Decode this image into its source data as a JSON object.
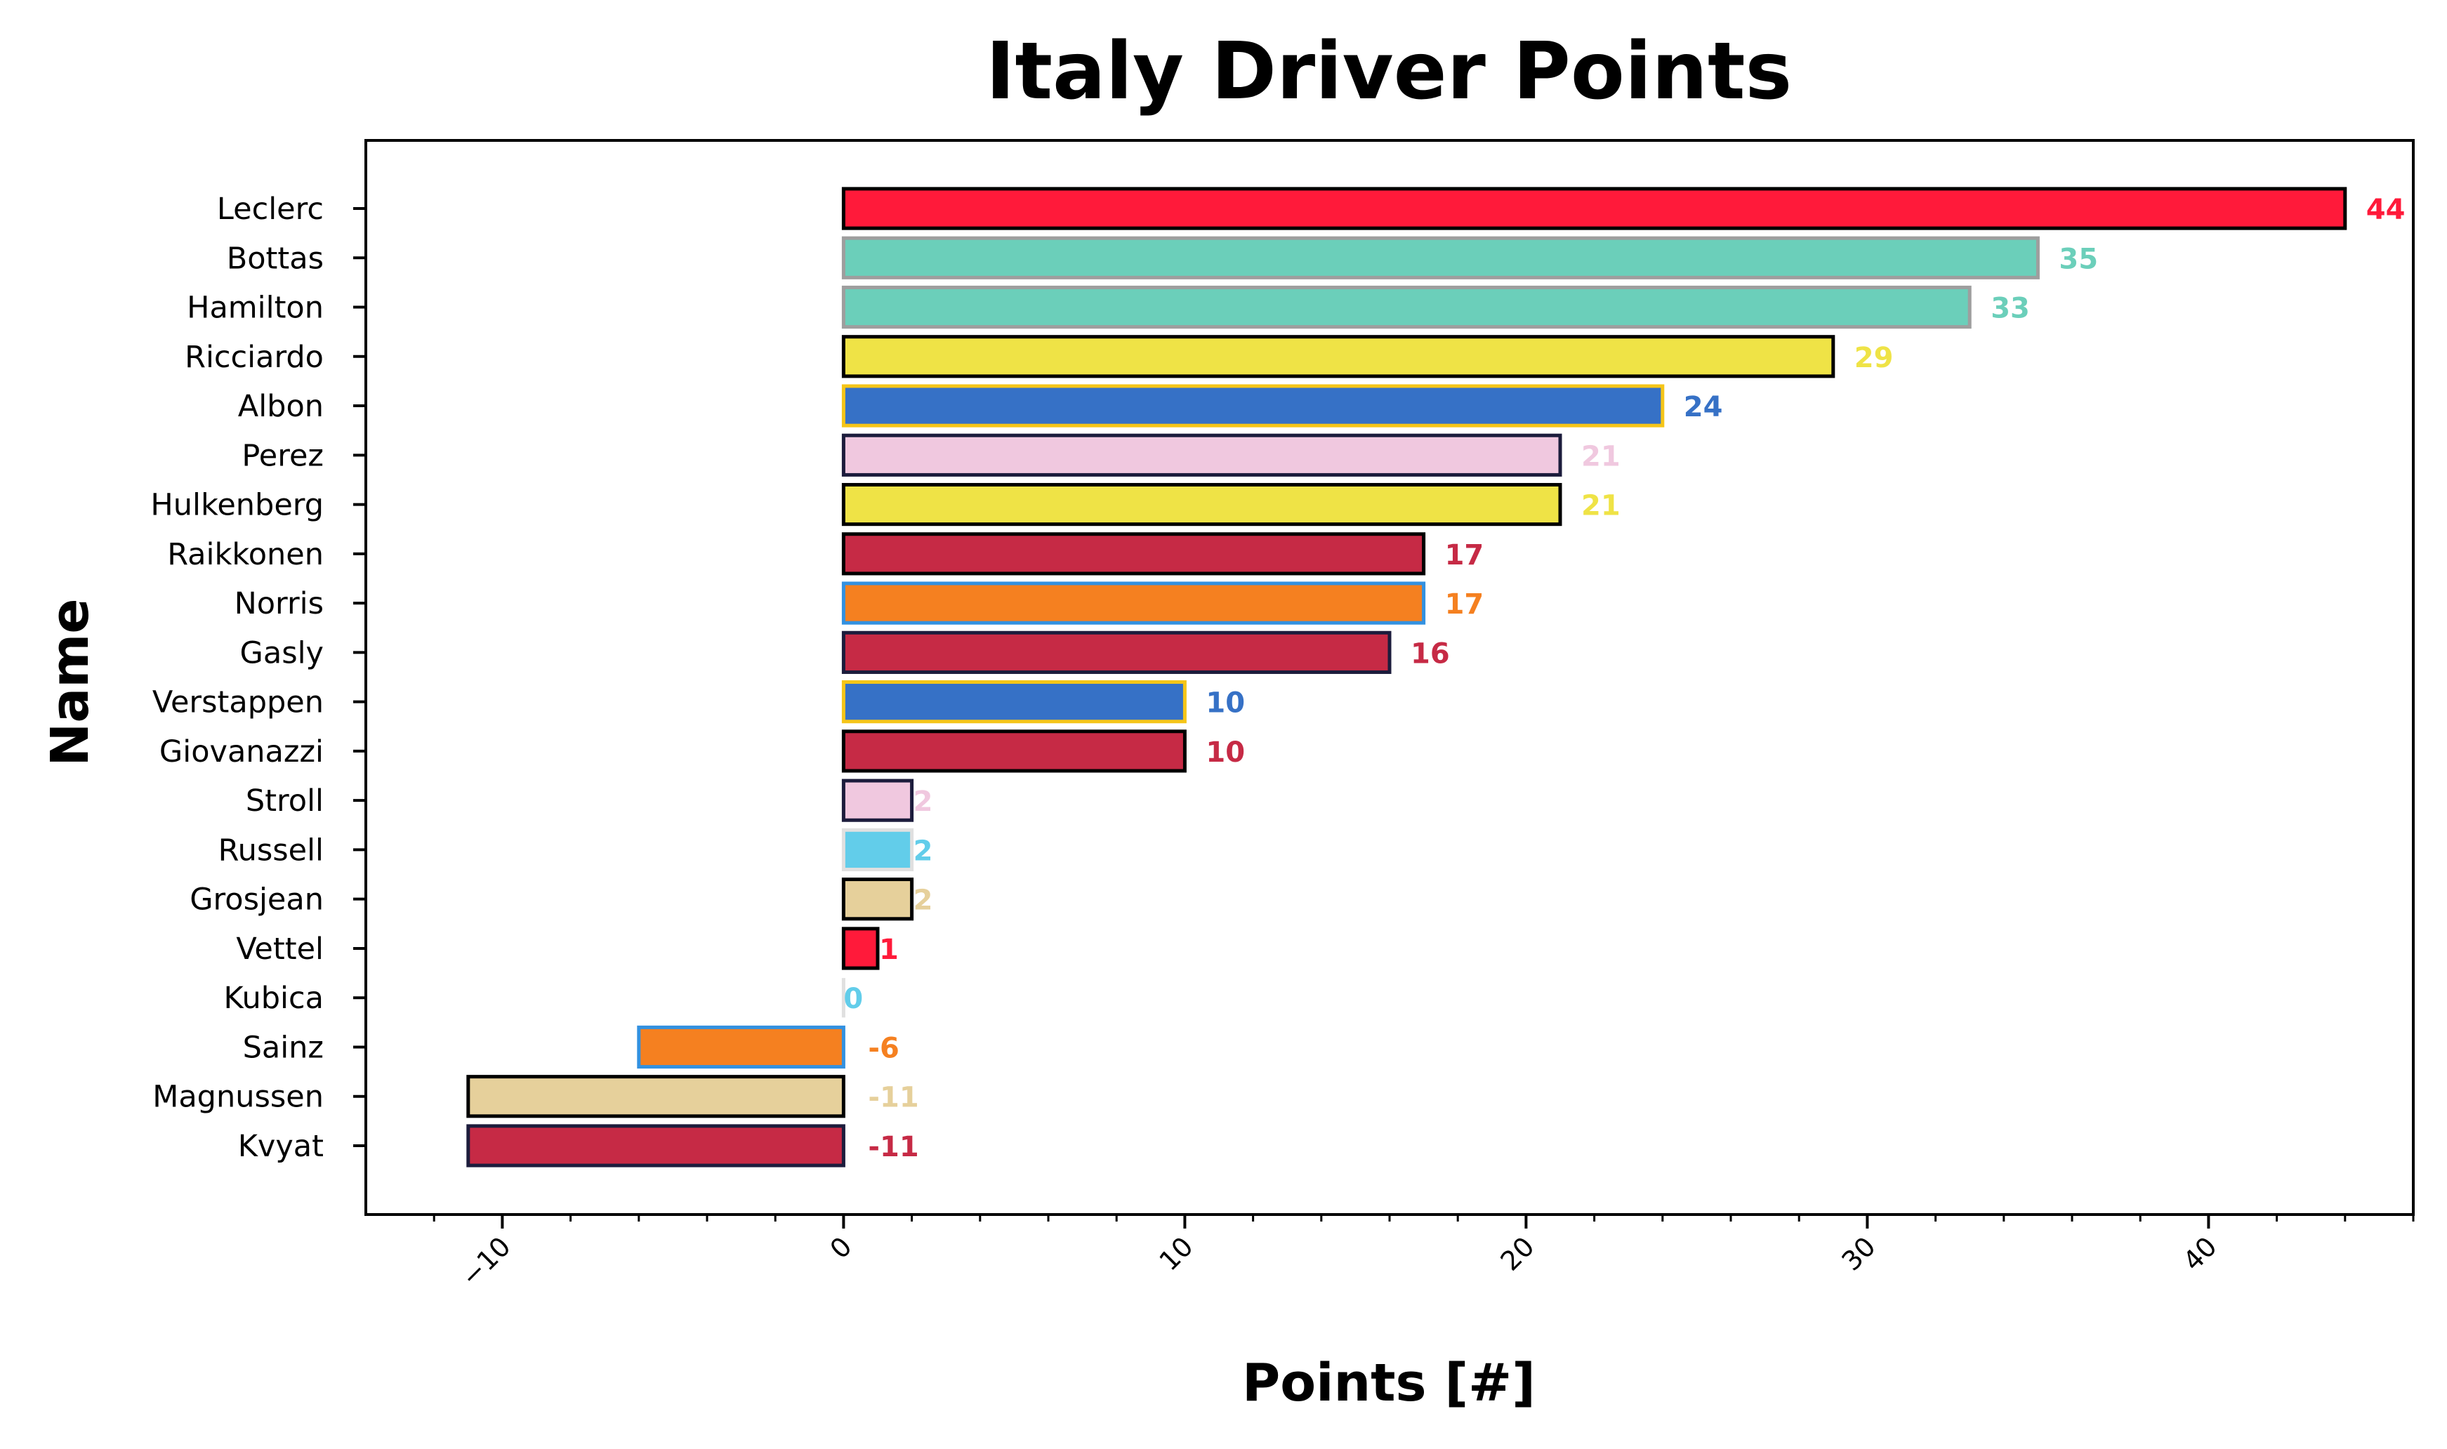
{
  "chart_data": {
    "type": "bar",
    "orientation": "horizontal",
    "title": "Italy Driver Points",
    "xlabel": "Points [#]",
    "ylabel": "Name",
    "xlim": [
      -14,
      46
    ],
    "xticks": [
      -10,
      0,
      10,
      20,
      30,
      40
    ],
    "xtick_labels": [
      "−10",
      "0",
      "10",
      "20",
      "30",
      "40"
    ],
    "grid": false,
    "categories": [
      "Leclerc",
      "Bottas",
      "Hamilton",
      "Ricciardo",
      "Albon",
      "Perez",
      "Hulkenberg",
      "Raikkonen",
      "Norris",
      "Gasly",
      "Verstappen",
      "Giovanazzi",
      "Stroll",
      "Russell",
      "Grosjean",
      "Vettel",
      "Kubica",
      "Sainz",
      "Magnussen",
      "Kvyat"
    ],
    "values": [
      44,
      35,
      33,
      29,
      24,
      21,
      21,
      17,
      17,
      16,
      10,
      10,
      2,
      2,
      2,
      1,
      0,
      -6,
      -11,
      -11
    ],
    "value_labels": [
      "44",
      "35",
      "33",
      "29",
      "24",
      "21",
      "21",
      "17",
      "17",
      "16",
      "10",
      "10",
      "2",
      "2",
      "2",
      "1",
      "0",
      "-6",
      "-11",
      "-11"
    ],
    "fill_colors": [
      "#ff1a3a",
      "#6bcfba",
      "#6bcfba",
      "#efe346",
      "#3671c6",
      "#f0c8df",
      "#efe346",
      "#c62a45",
      "#f58020",
      "#c62a45",
      "#3671c6",
      "#c62a45",
      "#f0c8df",
      "#62cdea",
      "#e6d09b",
      "#ff1a3a",
      "#62cdea",
      "#f58020",
      "#e6d09b",
      "#c62a45"
    ],
    "edge_colors": [
      "#000000",
      "#9e9e9e",
      "#9e9e9e",
      "#000000",
      "#f5c518",
      "#1c1c3c",
      "#000000",
      "#000000",
      "#3391e0",
      "#1c1c3c",
      "#f5c518",
      "#000000",
      "#1c1c3c",
      "#e0e0e0",
      "#000000",
      "#000000",
      "#e0e0e0",
      "#3391e0",
      "#000000",
      "#1c1c3c"
    ],
    "label_colors": [
      "#ff1a3a",
      "#6bcfba",
      "#6bcfba",
      "#efe346",
      "#3671c6",
      "#f0c8df",
      "#efe346",
      "#c62a45",
      "#f58020",
      "#c62a45",
      "#3671c6",
      "#c62a45",
      "#f0c8df",
      "#62cdea",
      "#e6d09b",
      "#ff1a3a",
      "#62cdea",
      "#f58020",
      "#e6d09b",
      "#c62a45"
    ]
  }
}
